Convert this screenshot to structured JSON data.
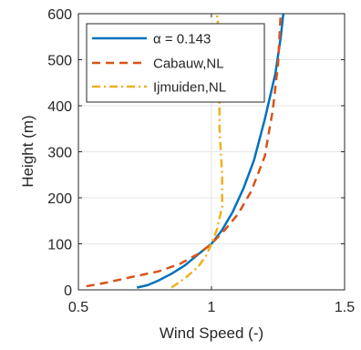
{
  "chart_data": {
    "type": "line",
    "xlabel": "Wind Speed (-)",
    "ylabel": "Height (m)",
    "xlim": [
      0.5,
      1.5
    ],
    "ylim": [
      0,
      600
    ],
    "xticks": [
      0.5,
      1,
      1.5
    ],
    "xtick_labels": [
      "0.5",
      "1",
      "1.5"
    ],
    "yticks": [
      0,
      100,
      200,
      300,
      400,
      500,
      600
    ],
    "ytick_labels": [
      "0",
      "100",
      "200",
      "300",
      "400",
      "500",
      "600"
    ],
    "grid": true,
    "legend_position": "top-left",
    "series": [
      {
        "name": "α = 0.143",
        "color": "#0072BD",
        "style": "solid",
        "x": [
          0.72,
          0.76,
          0.8,
          0.85,
          0.9,
          0.95,
          1.0,
          1.04,
          1.08,
          1.12,
          1.16,
          1.2,
          1.24,
          1.26,
          1.27
        ],
        "y": [
          5,
          10,
          20,
          35,
          53,
          77,
          100,
          130,
          170,
          220,
          282,
          370,
          470,
          548,
          600
        ]
      },
      {
        "name": "Cabauw,NL",
        "color": "#D95319",
        "style": "dashed",
        "x": [
          0.53,
          0.6,
          0.7,
          0.8,
          0.88,
          0.95,
          1.0,
          1.05,
          1.1,
          1.15,
          1.2,
          1.23,
          1.25,
          1.26
        ],
        "y": [
          8,
          15,
          28,
          40,
          56,
          78,
          100,
          130,
          165,
          215,
          290,
          390,
          490,
          600
        ]
      },
      {
        "name": "Ijmuiden,NL",
        "color": "#EDB120",
        "style": "dashdot",
        "x": [
          0.85,
          0.9,
          0.95,
          0.98,
          1.0,
          1.02,
          1.04,
          1.04,
          1.03,
          1.03,
          1.03,
          1.02
        ],
        "y": [
          5,
          25,
          50,
          75,
          100,
          130,
          180,
          250,
          350,
          450,
          550,
          600
        ]
      }
    ]
  }
}
